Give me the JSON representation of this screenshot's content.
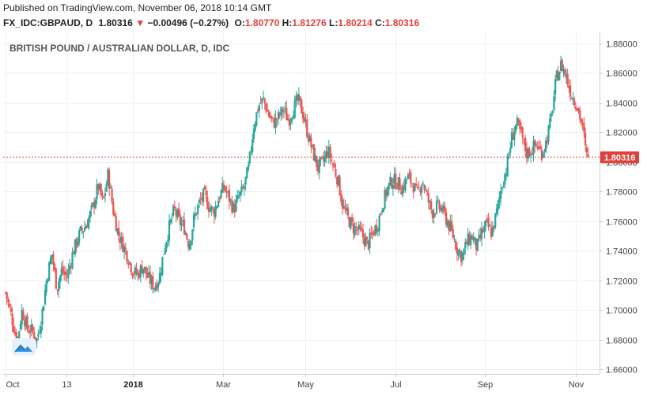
{
  "header": {
    "published": "Published on TradingView.com, November 06, 2018 10:14 GMT",
    "symbol": "FX_IDC:GBPAUD, D",
    "last": "1.80316",
    "change_arrow": "▼",
    "change": "−0.00496 (−0.27%)",
    "o_label": "O:",
    "o_value": "1.80770",
    "h_label": "H:",
    "h_value": "1.81276",
    "l_label": "L:",
    "l_value": "1.80214",
    "c_label": "C:",
    "c_value": "1.80316"
  },
  "colors": {
    "up": "#26a69a",
    "down": "#ef5350",
    "grid": "#eef0f3",
    "price_line": "#e0403a",
    "price_tag": "#e0403a"
  },
  "chart_data": {
    "type": "candlestick",
    "title": "BRITISH POUND / AUSTRALIAN DOLLAR, D, IDC",
    "ylim": [
      1.657,
      1.888
    ],
    "yticks": [
      "1.88000",
      "1.86000",
      "1.84000",
      "1.82000",
      "1.80000",
      "1.78000",
      "1.76000",
      "1.74000",
      "1.72000",
      "1.70000",
      "1.68000",
      "1.66000"
    ],
    "ytick_values": [
      1.88,
      1.86,
      1.84,
      1.82,
      1.8,
      1.78,
      1.76,
      1.74,
      1.72,
      1.7,
      1.68,
      1.66
    ],
    "xticks": [
      {
        "label": "Oct",
        "bold": false,
        "day": 0
      },
      {
        "label": "13",
        "bold": false,
        "day": 74
      },
      {
        "label": "2018",
        "bold": true,
        "day": 154
      },
      {
        "label": "Mar",
        "bold": false,
        "day": 263
      },
      {
        "label": "May",
        "bold": false,
        "day": 363
      },
      {
        "label": "Jul",
        "bold": false,
        "day": 472
      },
      {
        "label": "Sep",
        "bold": false,
        "day": 580
      },
      {
        "label": "Nov",
        "bold": false,
        "day": 690
      }
    ],
    "day_span": [
      0,
      705
    ],
    "last_price": 1.80316,
    "last_price_label": "1.80316",
    "anchors": [
      [
        0,
        1.712
      ],
      [
        8,
        1.694
      ],
      [
        14,
        1.678
      ],
      [
        20,
        1.7
      ],
      [
        26,
        1.688
      ],
      [
        32,
        1.686
      ],
      [
        38,
        1.68
      ],
      [
        44,
        1.697
      ],
      [
        50,
        1.722
      ],
      [
        56,
        1.738
      ],
      [
        62,
        1.715
      ],
      [
        68,
        1.727
      ],
      [
        74,
        1.722
      ],
      [
        82,
        1.74
      ],
      [
        90,
        1.752
      ],
      [
        98,
        1.758
      ],
      [
        106,
        1.77
      ],
      [
        112,
        1.784
      ],
      [
        118,
        1.772
      ],
      [
        124,
        1.792
      ],
      [
        130,
        1.768
      ],
      [
        136,
        1.752
      ],
      [
        142,
        1.744
      ],
      [
        148,
        1.736
      ],
      [
        154,
        1.726
      ],
      [
        160,
        1.724
      ],
      [
        166,
        1.73
      ],
      [
        172,
        1.722
      ],
      [
        180,
        1.716
      ],
      [
        186,
        1.722
      ],
      [
        192,
        1.742
      ],
      [
        198,
        1.756
      ],
      [
        204,
        1.768
      ],
      [
        210,
        1.76
      ],
      [
        216,
        1.756
      ],
      [
        222,
        1.744
      ],
      [
        228,
        1.762
      ],
      [
        234,
        1.772
      ],
      [
        240,
        1.778
      ],
      [
        246,
        1.77
      ],
      [
        252,
        1.766
      ],
      [
        258,
        1.776
      ],
      [
        264,
        1.783
      ],
      [
        270,
        1.776
      ],
      [
        276,
        1.768
      ],
      [
        282,
        1.776
      ],
      [
        288,
        1.782
      ],
      [
        294,
        1.796
      ],
      [
        300,
        1.824
      ],
      [
        306,
        1.838
      ],
      [
        312,
        1.842
      ],
      [
        318,
        1.832
      ],
      [
        324,
        1.826
      ],
      [
        330,
        1.83
      ],
      [
        336,
        1.836
      ],
      [
        342,
        1.828
      ],
      [
        348,
        1.836
      ],
      [
        354,
        1.842
      ],
      [
        360,
        1.832
      ],
      [
        366,
        1.818
      ],
      [
        372,
        1.806
      ],
      [
        378,
        1.796
      ],
      [
        384,
        1.8
      ],
      [
        390,
        1.808
      ],
      [
        396,
        1.798
      ],
      [
        402,
        1.788
      ],
      [
        408,
        1.77
      ],
      [
        414,
        1.762
      ],
      [
        420,
        1.756
      ],
      [
        426,
        1.754
      ],
      [
        432,
        1.75
      ],
      [
        438,
        1.744
      ],
      [
        444,
        1.752
      ],
      [
        450,
        1.758
      ],
      [
        456,
        1.772
      ],
      [
        462,
        1.782
      ],
      [
        468,
        1.788
      ],
      [
        474,
        1.786
      ],
      [
        480,
        1.782
      ],
      [
        486,
        1.79
      ],
      [
        492,
        1.786
      ],
      [
        498,
        1.778
      ],
      [
        504,
        1.788
      ],
      [
        510,
        1.776
      ],
      [
        516,
        1.766
      ],
      [
        522,
        1.77
      ],
      [
        528,
        1.768
      ],
      [
        534,
        1.76
      ],
      [
        540,
        1.752
      ],
      [
        546,
        1.742
      ],
      [
        552,
        1.736
      ],
      [
        558,
        1.746
      ],
      [
        564,
        1.75
      ],
      [
        570,
        1.742
      ],
      [
        576,
        1.752
      ],
      [
        582,
        1.758
      ],
      [
        588,
        1.752
      ],
      [
        594,
        1.766
      ],
      [
        600,
        1.784
      ],
      [
        606,
        1.796
      ],
      [
        612,
        1.816
      ],
      [
        618,
        1.826
      ],
      [
        624,
        1.818
      ],
      [
        630,
        1.806
      ],
      [
        636,
        1.808
      ],
      [
        642,
        1.812
      ],
      [
        648,
        1.806
      ],
      [
        654,
        1.814
      ],
      [
        660,
        1.83
      ],
      [
        666,
        1.856
      ],
      [
        672,
        1.866
      ],
      [
        678,
        1.858
      ],
      [
        684,
        1.846
      ],
      [
        690,
        1.84
      ],
      [
        696,
        1.828
      ],
      [
        700,
        1.816
      ],
      [
        702,
        1.804
      ],
      [
        705,
        1.80316
      ]
    ]
  }
}
